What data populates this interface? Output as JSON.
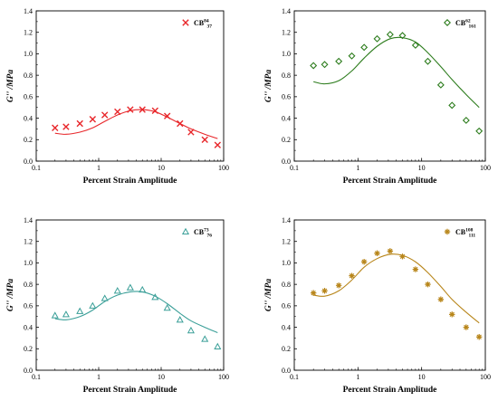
{
  "chart_data": [
    {
      "type": "scatter+line",
      "xlabel": "Percent Strain Amplitude",
      "ylabel": "G'' /MPa",
      "xscale": "log",
      "xlim": [
        0.1,
        100
      ],
      "ylim": [
        0.0,
        1.4
      ],
      "xticks": [
        "0.1",
        "1",
        "10",
        "100"
      ],
      "yticks": [
        "0.0",
        "0.2",
        "0.4",
        "0.6",
        "0.8",
        "1.0",
        "1.2",
        "1.4"
      ],
      "color": "#e8262a",
      "marker": "x",
      "legend": {
        "base": "CB",
        "sup": "84",
        "sub": "37"
      },
      "points": {
        "x": [
          0.2,
          0.3,
          0.5,
          0.8,
          1.25,
          2.0,
          3.2,
          5.0,
          8.0,
          12.5,
          20,
          30,
          50,
          80
        ],
        "y": [
          0.31,
          0.32,
          0.35,
          0.39,
          0.43,
          0.46,
          0.48,
          0.48,
          0.47,
          0.42,
          0.35,
          0.27,
          0.2,
          0.15
        ]
      },
      "fit": {
        "x": [
          0.2,
          0.3,
          0.5,
          0.8,
          1.25,
          2.0,
          3.2,
          5.0,
          8.0,
          12.5,
          20,
          30,
          50,
          80
        ],
        "y": [
          0.26,
          0.25,
          0.27,
          0.31,
          0.37,
          0.43,
          0.47,
          0.48,
          0.46,
          0.41,
          0.35,
          0.3,
          0.25,
          0.21
        ]
      }
    },
    {
      "type": "scatter+line",
      "xlabel": "Percent Strain Amplitude",
      "ylabel": "G'' /MPa",
      "xscale": "log",
      "xlim": [
        0.1,
        100
      ],
      "ylim": [
        0.0,
        1.4
      ],
      "xticks": [
        "0.1",
        "1",
        "10",
        "100"
      ],
      "yticks": [
        "0.0",
        "0.2",
        "0.4",
        "0.6",
        "0.8",
        "1.0",
        "1.2",
        "1.4"
      ],
      "color": "#2e7d1e",
      "marker": "diamond",
      "legend": {
        "base": "CB",
        "sup": "62",
        "sub": "161"
      },
      "points": {
        "x": [
          0.2,
          0.3,
          0.5,
          0.8,
          1.25,
          2.0,
          3.2,
          5.0,
          8.0,
          12.5,
          20,
          30,
          50,
          80
        ],
        "y": [
          0.89,
          0.9,
          0.93,
          0.98,
          1.06,
          1.14,
          1.18,
          1.17,
          1.08,
          0.93,
          0.71,
          0.52,
          0.38,
          0.28
        ]
      },
      "fit": {
        "x": [
          0.2,
          0.3,
          0.5,
          0.8,
          1.25,
          2.0,
          3.2,
          5.0,
          8.0,
          12.5,
          20,
          30,
          50,
          80
        ],
        "y": [
          0.74,
          0.72,
          0.75,
          0.84,
          0.96,
          1.07,
          1.14,
          1.15,
          1.11,
          1.01,
          0.88,
          0.76,
          0.62,
          0.5
        ]
      }
    },
    {
      "type": "scatter+line",
      "xlabel": "Percent Strain Amplitude",
      "ylabel": "G'' /MPa",
      "xscale": "log",
      "xlim": [
        0.1,
        100
      ],
      "ylim": [
        0.0,
        1.4
      ],
      "xticks": [
        "0.1",
        "1",
        "10",
        "100"
      ],
      "yticks": [
        "0.0",
        "0.2",
        "0.4",
        "0.6",
        "0.8",
        "1.0",
        "1.2",
        "1.4"
      ],
      "color": "#3a9f98",
      "marker": "triangle",
      "legend": {
        "base": "CB",
        "sup": "73",
        "sub": "76"
      },
      "points": {
        "x": [
          0.2,
          0.3,
          0.5,
          0.8,
          1.25,
          2.0,
          3.2,
          5.0,
          8.0,
          12.5,
          20,
          30,
          50,
          80
        ],
        "y": [
          0.51,
          0.52,
          0.55,
          0.6,
          0.67,
          0.74,
          0.77,
          0.75,
          0.68,
          0.58,
          0.47,
          0.37,
          0.29,
          0.22
        ]
      },
      "fit": {
        "x": [
          0.2,
          0.3,
          0.5,
          0.8,
          1.25,
          2.0,
          3.2,
          5.0,
          8.0,
          12.5,
          20,
          30,
          50,
          80
        ],
        "y": [
          0.48,
          0.47,
          0.5,
          0.56,
          0.64,
          0.7,
          0.73,
          0.73,
          0.69,
          0.62,
          0.53,
          0.46,
          0.4,
          0.35
        ]
      }
    },
    {
      "type": "scatter+line",
      "xlabel": "Percent Strain Amplitude",
      "ylabel": "G'' /MPa",
      "xscale": "log",
      "xlim": [
        0.1,
        100
      ],
      "ylim": [
        0.0,
        1.4
      ],
      "xticks": [
        "0.1",
        "1",
        "10",
        "100"
      ],
      "yticks": [
        "0.0",
        "0.2",
        "0.4",
        "0.6",
        "0.8",
        "1.0",
        "1.2",
        "1.4"
      ],
      "color": "#b8861b",
      "marker": "asterisk",
      "legend": {
        "base": "CB",
        "sup": "108",
        "sub": "111"
      },
      "points": {
        "x": [
          0.2,
          0.3,
          0.5,
          0.8,
          1.25,
          2.0,
          3.2,
          5.0,
          8.0,
          12.5,
          20,
          30,
          50,
          80
        ],
        "y": [
          0.72,
          0.74,
          0.79,
          0.88,
          1.01,
          1.09,
          1.11,
          1.06,
          0.94,
          0.8,
          0.66,
          0.52,
          0.4,
          0.31
        ]
      },
      "fit": {
        "x": [
          0.2,
          0.3,
          0.5,
          0.8,
          1.25,
          2.0,
          3.2,
          5.0,
          8.0,
          12.5,
          20,
          30,
          50,
          80
        ],
        "y": [
          0.7,
          0.69,
          0.74,
          0.84,
          0.96,
          1.04,
          1.08,
          1.07,
          1.01,
          0.91,
          0.78,
          0.66,
          0.54,
          0.44
        ]
      }
    }
  ]
}
